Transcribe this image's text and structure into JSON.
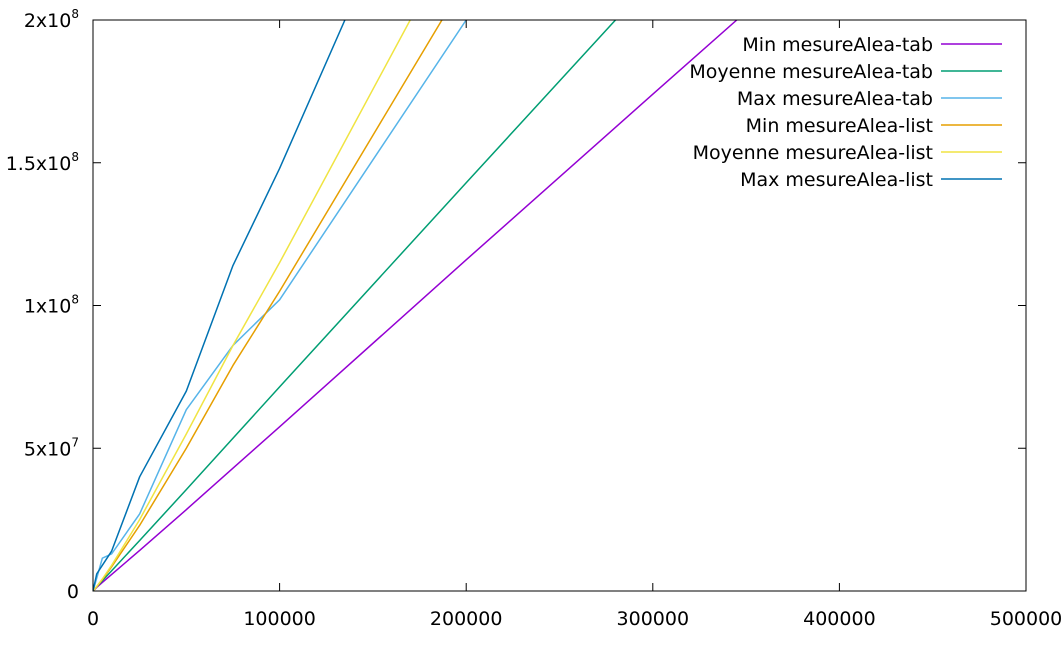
{
  "chart_data": {
    "type": "line",
    "title": "",
    "xlabel": "",
    "ylabel": "",
    "xlim": [
      0,
      500000
    ],
    "ylim": [
      0,
      200000000
    ],
    "grid": false,
    "legend_position": "top-right",
    "x_ticks": [
      {
        "value": 0,
        "label": "0"
      },
      {
        "value": 100000,
        "label": "100000"
      },
      {
        "value": 200000,
        "label": "200000"
      },
      {
        "value": 300000,
        "label": "300000"
      },
      {
        "value": 400000,
        "label": "400000"
      },
      {
        "value": 500000,
        "label": "500000"
      }
    ],
    "y_ticks": [
      {
        "value": 0,
        "mantissa": "0",
        "exponent": ""
      },
      {
        "value": 50000000,
        "mantissa": "5x10",
        "exponent": "7"
      },
      {
        "value": 100000000,
        "mantissa": "1x10",
        "exponent": "8"
      },
      {
        "value": 150000000,
        "mantissa": "1.5x10",
        "exponent": "8"
      },
      {
        "value": 200000000,
        "mantissa": "2x10",
        "exponent": "8"
      }
    ],
    "series": [
      {
        "name": "Min mesureAlea-tab",
        "color": "#9400d3",
        "points": [
          [
            0,
            0
          ],
          [
            2000,
            1300000
          ],
          [
            5000,
            3000000
          ],
          [
            10000,
            5800000
          ],
          [
            25000,
            14200000
          ],
          [
            50000,
            28500000
          ],
          [
            75000,
            43000000
          ],
          [
            100000,
            57500000
          ],
          [
            200000,
            116000000
          ],
          [
            300000,
            174000000
          ],
          [
            345000,
            200000000
          ]
        ]
      },
      {
        "name": "Moyenne mesureAlea-tab",
        "color": "#009e73",
        "points": [
          [
            0,
            0
          ],
          [
            2000,
            1500000
          ],
          [
            5000,
            3600000
          ],
          [
            10000,
            7100000
          ],
          [
            25000,
            17700000
          ],
          [
            50000,
            35500000
          ],
          [
            75000,
            53500000
          ],
          [
            100000,
            71500000
          ],
          [
            200000,
            143000000
          ],
          [
            280000,
            200000000
          ]
        ]
      },
      {
        "name": "Max mesureAlea-tab",
        "color": "#56b4e9",
        "points": [
          [
            0,
            0
          ],
          [
            2000,
            4500000
          ],
          [
            5000,
            11500000
          ],
          [
            10000,
            13000000
          ],
          [
            25000,
            27000000
          ],
          [
            50000,
            63500000
          ],
          [
            75000,
            86000000
          ],
          [
            100000,
            102000000
          ],
          [
            200000,
            200000000
          ]
        ]
      },
      {
        "name": "Min mesureAlea-list",
        "color": "#e69f00",
        "points": [
          [
            0,
            0
          ],
          [
            2000,
            1500000
          ],
          [
            5000,
            4000000
          ],
          [
            10000,
            8500000
          ],
          [
            25000,
            23000000
          ],
          [
            50000,
            50000000
          ],
          [
            75000,
            79000000
          ],
          [
            100000,
            105000000
          ],
          [
            187000,
            200000000
          ]
        ]
      },
      {
        "name": "Moyenne mesureAlea-list",
        "color": "#f0e442",
        "points": [
          [
            0,
            0
          ],
          [
            2000,
            1600000
          ],
          [
            5000,
            4200000
          ],
          [
            10000,
            9000000
          ],
          [
            25000,
            25000000
          ],
          [
            50000,
            55000000
          ],
          [
            75000,
            86000000
          ],
          [
            100000,
            115000000
          ],
          [
            170000,
            200000000
          ]
        ]
      },
      {
        "name": "Max mesureAlea-list",
        "color": "#0072b2",
        "points": [
          [
            0,
            0
          ],
          [
            2000,
            6000000
          ],
          [
            5000,
            9000000
          ],
          [
            10000,
            14000000
          ],
          [
            25000,
            40000000
          ],
          [
            50000,
            70000000
          ],
          [
            75000,
            114000000
          ],
          [
            100000,
            148000000
          ],
          [
            135000,
            200000000
          ]
        ]
      }
    ]
  }
}
